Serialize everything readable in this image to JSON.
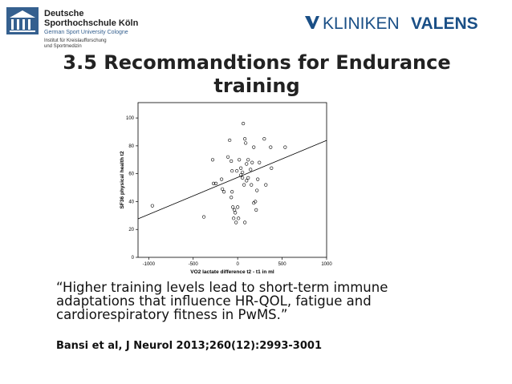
{
  "header": {
    "left_logo": [
      "Deutsche",
      "Sporthochschule Köln",
      "German Sport University Cologne"
    ],
    "institute": [
      "Institut für Kreislaufforschung",
      "und Sportmedizin"
    ],
    "right_logo": [
      "KLINIKEN",
      "VALENS"
    ]
  },
  "title": "3.5 Recommandtions for Endurance training",
  "chart_data": {
    "type": "scatter",
    "xlabel": "VO2 lactate difference t2 - t1 in ml",
    "ylabel": "SF36 physical health t2",
    "x": [
      -959,
      -380,
      -281,
      -271,
      -244,
      -181,
      -172,
      -154,
      -109,
      -90,
      -72,
      -63,
      -63,
      -72,
      -54,
      -45,
      -36,
      -27,
      0,
      9,
      -18,
      -9,
      18,
      36,
      36,
      54,
      54,
      63,
      81,
      90,
      100,
      100,
      118,
      118,
      145,
      154,
      163,
      181,
      181,
      199,
      208,
      217,
      226,
      244,
      299,
      317,
      371,
      380,
      534,
      81,
      72
    ],
    "values": [
      37,
      29,
      70,
      53,
      53,
      56,
      49,
      47,
      72,
      84,
      69,
      62,
      47,
      43,
      36,
      28,
      34,
      32,
      36,
      28,
      25,
      62,
      70,
      64,
      59,
      61,
      57,
      96,
      85,
      82,
      67,
      55,
      57,
      70,
      63,
      52,
      68,
      79,
      39,
      40,
      34,
      48,
      56,
      68,
      85,
      52,
      79,
      64,
      79,
      25,
      52
    ],
    "fit_line": {
      "x": [
        -1120,
        1000
      ],
      "y": [
        27.6,
        83.9
      ]
    },
    "color": "#000000",
    "xlim": [
      -1120,
      1000
    ],
    "ylim": [
      0,
      111
    ],
    "xticks": [
      -1000,
      -500,
      0,
      500,
      1000
    ],
    "yticks": [
      0,
      20,
      40,
      60,
      80,
      100
    ]
  },
  "quote": "“Higher training levels lead to short-term immune adaptations that influence HR-QOL, fatigue and cardiorespiratory fitness in PwMS.”",
  "citation": "Bansi et al, J Neurol 2013;260(12):2993-3001"
}
